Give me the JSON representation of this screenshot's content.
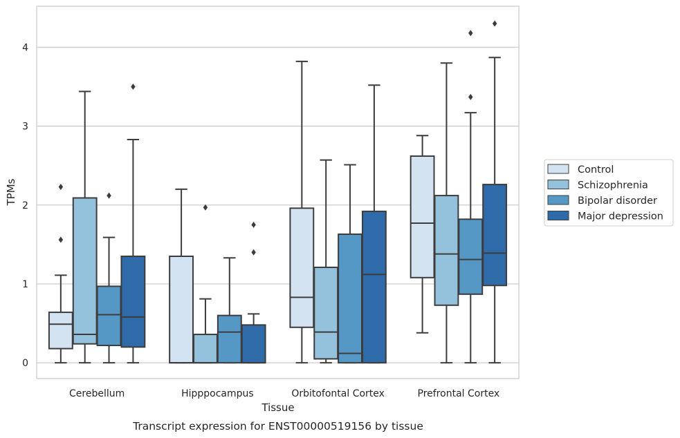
{
  "chart_data": {
    "type": "box",
    "caption": "Transcript expression for ENST00000519156 by tissue",
    "xlabel": "Tissue",
    "ylabel": "TPMs",
    "ylim": [
      -0.2,
      4.52
    ],
    "yticks": [
      0,
      1,
      2,
      3,
      4
    ],
    "grid": "horizontal",
    "legend_position": "right",
    "categories": [
      "Cerebellum",
      "Hipppocampus",
      "Orbitofontal Cortex",
      "Prefrontal Cortex"
    ],
    "series": [
      {
        "name": "Control",
        "color": "#d3e3f2",
        "boxes": [
          {
            "whisker_low": 0,
            "q1": 0.18,
            "median": 0.49,
            "q3": 0.64,
            "whisker_high": 1.11,
            "outliers": [
              1.56,
              2.23
            ]
          },
          {
            "whisker_low": 0,
            "q1": 0,
            "median": 0,
            "q3": 1.35,
            "whisker_high": 2.2,
            "outliers": []
          },
          {
            "whisker_low": 0,
            "q1": 0.45,
            "median": 0.83,
            "q3": 1.96,
            "whisker_high": 3.82,
            "outliers": []
          },
          {
            "whisker_low": 0.38,
            "q1": 1.08,
            "median": 1.77,
            "q3": 2.62,
            "whisker_high": 2.88,
            "outliers": []
          }
        ]
      },
      {
        "name": "Schizophrenia",
        "color": "#94c1dc",
        "boxes": [
          {
            "whisker_low": 0,
            "q1": 0.24,
            "median": 0.36,
            "q3": 2.09,
            "whisker_high": 3.44,
            "outliers": []
          },
          {
            "whisker_low": 0,
            "q1": 0,
            "median": 0,
            "q3": 0.36,
            "whisker_high": 0.81,
            "outliers": [
              1.97
            ]
          },
          {
            "whisker_low": 0,
            "q1": 0.05,
            "median": 0.39,
            "q3": 1.21,
            "whisker_high": 2.57,
            "outliers": []
          },
          {
            "whisker_low": 0,
            "q1": 0.73,
            "median": 1.38,
            "q3": 2.12,
            "whisker_high": 3.8,
            "outliers": []
          }
        ]
      },
      {
        "name": "Bipolar disorder",
        "color": "#5698c5",
        "boxes": [
          {
            "whisker_low": 0,
            "q1": 0.22,
            "median": 0.61,
            "q3": 0.97,
            "whisker_high": 1.59,
            "outliers": [
              2.12
            ]
          },
          {
            "whisker_low": 0,
            "q1": 0,
            "median": 0.39,
            "q3": 0.6,
            "whisker_high": 1.33,
            "outliers": []
          },
          {
            "whisker_low": 0,
            "q1": 0,
            "median": 0.12,
            "q3": 1.63,
            "whisker_high": 2.51,
            "outliers": []
          },
          {
            "whisker_low": 0,
            "q1": 0.87,
            "median": 1.31,
            "q3": 1.82,
            "whisker_high": 3.17,
            "outliers": [
              3.37,
              4.18
            ]
          }
        ]
      },
      {
        "name": "Major depression",
        "color": "#2f6ba8",
        "boxes": [
          {
            "whisker_low": 0,
            "q1": 0.2,
            "median": 0.58,
            "q3": 1.35,
            "whisker_high": 2.83,
            "outliers": [
              3.5
            ]
          },
          {
            "whisker_low": 0,
            "q1": 0,
            "median": 0,
            "q3": 0.48,
            "whisker_high": 0.62,
            "outliers": [
              1.4,
              1.75
            ]
          },
          {
            "whisker_low": 0,
            "q1": 0,
            "median": 1.12,
            "q3": 1.92,
            "whisker_high": 3.52,
            "outliers": []
          },
          {
            "whisker_low": 0,
            "q1": 0.98,
            "median": 1.39,
            "q3": 2.26,
            "whisker_high": 3.87,
            "outliers": [
              4.3
            ]
          }
        ]
      }
    ]
  }
}
